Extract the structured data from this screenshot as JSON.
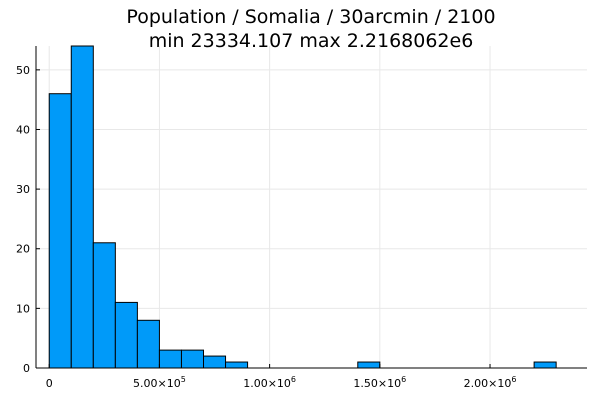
{
  "chart_data": {
    "type": "bar",
    "title_lines": [
      "Population / Somalia / 30arcmin / 2100",
      "min 23334.107  max 2.2168062e6"
    ],
    "xlabel": "",
    "ylabel": "",
    "xlim": [
      -60000,
      2440000
    ],
    "ylim": [
      0,
      54
    ],
    "x_ticks": [
      {
        "value": 0,
        "base": "0",
        "exp": ""
      },
      {
        "value": 500000,
        "base": "5.00×10",
        "exp": "5"
      },
      {
        "value": 1000000,
        "base": "1.00×10",
        "exp": "6"
      },
      {
        "value": 1500000,
        "base": "1.50×10",
        "exp": "6"
      },
      {
        "value": 2000000,
        "base": "2.00×10",
        "exp": "6"
      }
    ],
    "y_ticks": [
      0,
      10,
      20,
      30,
      40,
      50
    ],
    "bin_width": 100000,
    "bins": [
      {
        "x0": 0,
        "count": 46
      },
      {
        "x0": 100000,
        "count": 54
      },
      {
        "x0": 200000,
        "count": 21
      },
      {
        "x0": 300000,
        "count": 11
      },
      {
        "x0": 400000,
        "count": 8
      },
      {
        "x0": 500000,
        "count": 3
      },
      {
        "x0": 600000,
        "count": 3
      },
      {
        "x0": 700000,
        "count": 2
      },
      {
        "x0": 800000,
        "count": 1
      },
      {
        "x0": 1400000,
        "count": 1
      },
      {
        "x0": 2200000,
        "count": 1
      }
    ],
    "grid": true,
    "legend": false,
    "colors": {
      "bar": "#009af9",
      "edge": "#000000"
    }
  }
}
